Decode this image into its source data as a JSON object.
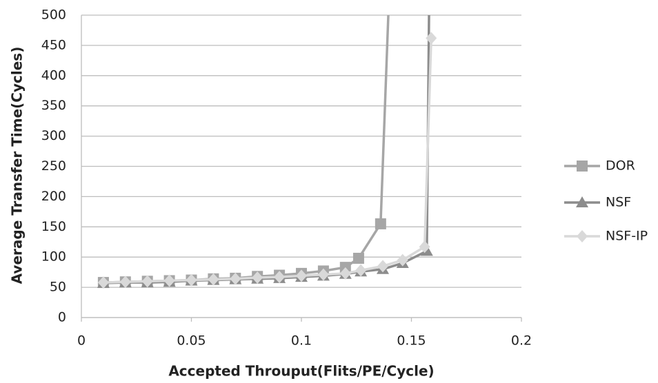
{
  "chart_data": {
    "type": "line",
    "x_label": "Accepted Throuput(Flits/PE/Cycle)",
    "y_label": "Average Transfer Time(Cycles)",
    "xlim": [
      0,
      0.2
    ],
    "xticks": [
      0,
      0.05,
      0.1,
      0.15,
      0.2
    ],
    "ylim": [
      0,
      500
    ],
    "yticks": [
      0,
      50,
      100,
      150,
      200,
      250,
      300,
      350,
      400,
      450,
      500
    ],
    "grid": true,
    "legend": "right",
    "series": [
      {
        "name": "DOR",
        "color": "#a6a6a6",
        "marker": "square",
        "x": [
          0.01,
          0.02,
          0.03,
          0.04,
          0.05,
          0.06,
          0.07,
          0.08,
          0.09,
          0.1,
          0.11,
          0.12,
          0.126,
          0.136,
          0.1395
        ],
        "values": [
          58,
          59,
          60,
          61,
          62,
          64,
          65,
          68,
          70,
          73,
          77,
          83,
          98,
          155,
          500
        ]
      },
      {
        "name": "NSF",
        "color": "#8c8c8c",
        "marker": "triangle",
        "x": [
          0.01,
          0.02,
          0.03,
          0.04,
          0.05,
          0.06,
          0.07,
          0.08,
          0.09,
          0.1,
          0.11,
          0.12,
          0.127,
          0.137,
          0.146,
          0.157,
          0.158
        ],
        "values": [
          57,
          58,
          58,
          59,
          61,
          62,
          63,
          64,
          65,
          67,
          69,
          72,
          76,
          80,
          90,
          110,
          500
        ]
      },
      {
        "name": "NSF-IP",
        "color": "#d9d9d9",
        "marker": "diamond",
        "x": [
          0.01,
          0.02,
          0.03,
          0.04,
          0.05,
          0.06,
          0.07,
          0.08,
          0.09,
          0.1,
          0.11,
          0.12,
          0.127,
          0.137,
          0.146,
          0.156,
          0.159
        ],
        "values": [
          58,
          59,
          60,
          61,
          62,
          63,
          64,
          66,
          67,
          69,
          71,
          73,
          78,
          85,
          95,
          117,
          462
        ]
      }
    ]
  }
}
